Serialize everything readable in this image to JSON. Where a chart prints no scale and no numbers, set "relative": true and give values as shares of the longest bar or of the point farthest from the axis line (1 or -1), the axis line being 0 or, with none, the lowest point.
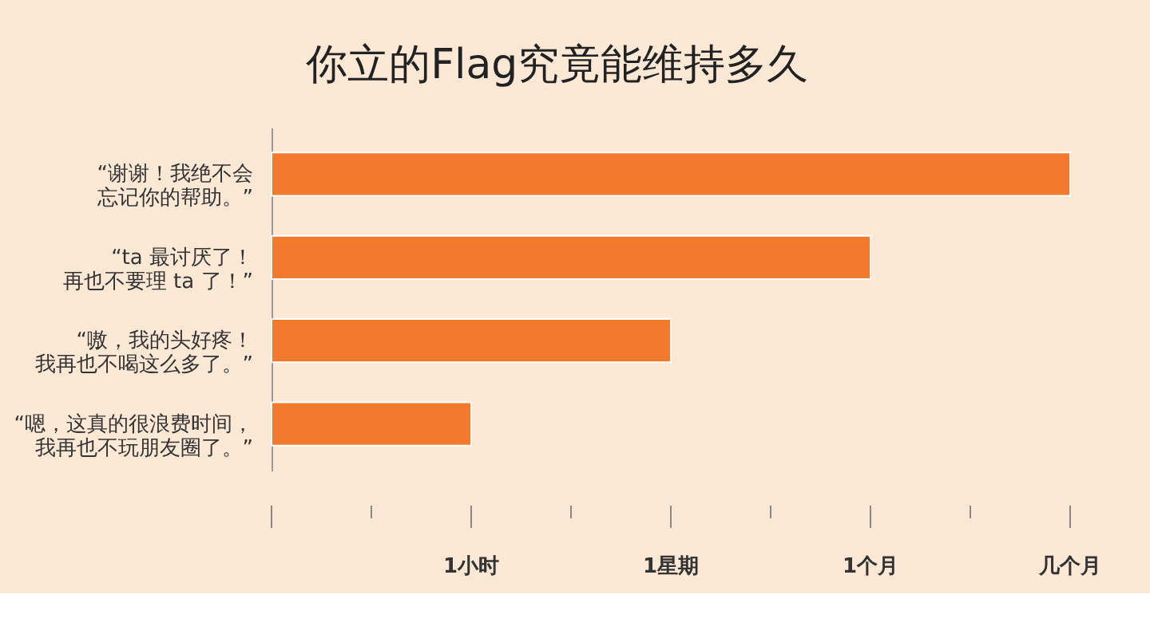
{
  "chart_data": {
    "type": "bar",
    "orientation": "horizontal",
    "relative": true,
    "title": "你立的Flag究竟能维持多久",
    "categories": [
      "“谢谢！我绝不会忘记你的帮助。”",
      "“ta 最讨厌了！再也不要理 ta 了！”",
      "“嗷，我的头好疼！我再也不喝这么多了。”",
      "“嗯，这真的很浪费时间，我再也不玩朋友圈了。”"
    ],
    "series": [
      {
        "color": "#f37a2c",
        "values": [
          1,
          0.75,
          0.5,
          0.25
        ]
      }
    ],
    "annotations": [
      "1小时",
      "1星期",
      "1个月",
      "几个月"
    ],
    "grid": false,
    "legend": false
  }
}
